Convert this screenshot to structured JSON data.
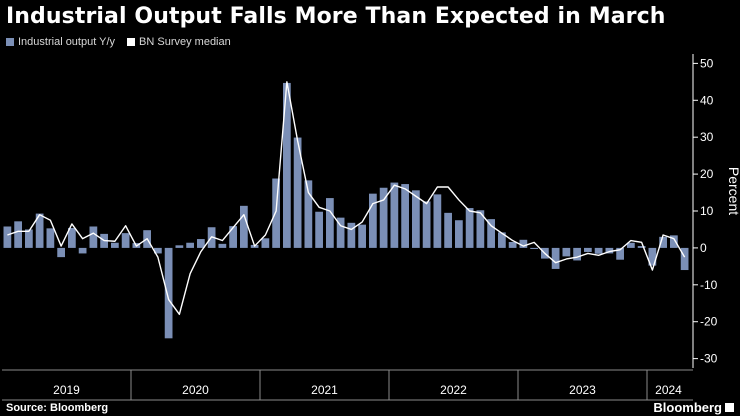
{
  "title": "Industrial Output Falls More Than Expected in March",
  "legend": {
    "bar_label": "Industrial output Y/y",
    "line_label": "BN Survey median"
  },
  "footer": {
    "source": "Source: Bloomberg",
    "brand": "Bloomberg"
  },
  "colors": {
    "bar": "#7b8fb6",
    "line": "#ffffff",
    "axis": "#ffffff",
    "grid": "#4a4a4a"
  },
  "chart_data": {
    "type": "bar",
    "title": "Industrial Output Falls More Than Expected in March",
    "ylabel": "Percent",
    "xlabel": "",
    "ylim": [
      -32,
      52
    ],
    "yticks": [
      50,
      40,
      30,
      20,
      10,
      0,
      -10,
      -20,
      -30
    ],
    "year_labels": [
      "2019",
      "2020",
      "2021",
      "2022",
      "2023",
      "2024"
    ],
    "year_start_index": [
      0,
      12,
      24,
      36,
      48,
      60
    ],
    "series": [
      {
        "name": "Industrial output Y/y",
        "type": "bar",
        "values": [
          5.8,
          7.2,
          5.0,
          9.3,
          5.3,
          -2.5,
          5.4,
          -1.5,
          5.8,
          3.8,
          1.4,
          4.0,
          1.3,
          4.8,
          -1.5,
          -24.5,
          0.7,
          1.4,
          2.4,
          5.6,
          1.1,
          5.9,
          11.4,
          0.8,
          2.6,
          18.8,
          44.7,
          29.9,
          18.3,
          9.8,
          13.5,
          8.2,
          6.8,
          6.3,
          14.7,
          16.3,
          17.7,
          17.3,
          15.6,
          12.6,
          14.5,
          9.5,
          7.5,
          10.8,
          10.2,
          7.8,
          4.2,
          1.6,
          2.2,
          -0.3,
          -2.9,
          -5.7,
          -2.3,
          -3.4,
          -1.1,
          -1.6,
          -1.5,
          -3.2,
          1.4,
          0.5,
          -4.8,
          3.0,
          3.4,
          -6.0
        ]
      },
      {
        "name": "BN Survey median",
        "type": "line",
        "values": [
          3.5,
          4.5,
          4.5,
          9.0,
          7.5,
          0.5,
          6.5,
          2.5,
          4.0,
          2.0,
          1.8,
          6.0,
          0.5,
          2.5,
          -2.5,
          -14.0,
          -18.0,
          -7.0,
          -1.0,
          3.0,
          2.0,
          5.5,
          9.0,
          0.5,
          3.5,
          10.0,
          45.0,
          29.0,
          15.0,
          11.0,
          10.0,
          6.0,
          5.0,
          7.0,
          12.0,
          13.0,
          17.0,
          16.0,
          14.0,
          12.0,
          16.5,
          16.5,
          13.0,
          10.0,
          9.5,
          6.0,
          4.0,
          2.0,
          0.5,
          1.5,
          -1.5,
          -4.0,
          -3.0,
          -2.5,
          -1.5,
          -2.0,
          -1.0,
          -0.5,
          2.0,
          1.5,
          -6.0,
          3.5,
          2.5,
          -2.5
        ]
      }
    ]
  }
}
